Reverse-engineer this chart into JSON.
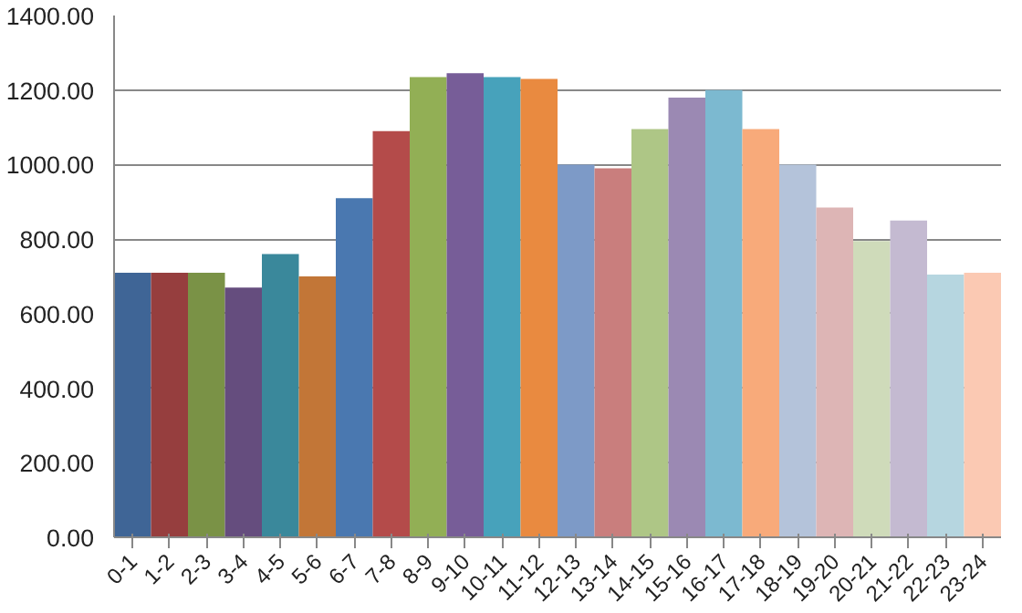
{
  "chart_data": {
    "type": "bar",
    "categories": [
      "0-1",
      "1-2",
      "2-3",
      "3-4",
      "4-5",
      "5-6",
      "6-7",
      "7-8",
      "8-9",
      "9-10",
      "10-11",
      "11-12",
      "12-13",
      "13-14",
      "14-15",
      "15-16",
      "16-17",
      "17-18",
      "18-19",
      "19-20",
      "20-21",
      "21-22",
      "22-23",
      "23-24"
    ],
    "values": [
      710,
      710,
      710,
      670,
      760,
      700,
      910,
      1090,
      1235,
      1245,
      1235,
      1230,
      1000,
      990,
      1095,
      1180,
      1200,
      1095,
      1000,
      885,
      795,
      850,
      705,
      710
    ],
    "colors": [
      "#3f6596",
      "#963e3e",
      "#7a9246",
      "#654d7e",
      "#3a889b",
      "#c27637",
      "#4a78b0",
      "#b44b4a",
      "#92af55",
      "#775d98",
      "#47a2bb",
      "#e98a40",
      "#7d9ac7",
      "#c97e7d",
      "#aec686",
      "#9b89b3",
      "#7cb9d0",
      "#f8aa7a",
      "#b4c3da",
      "#ddb5b5",
      "#cfdbba",
      "#c4bad1",
      "#b6d6e0",
      "#fbc9b3"
    ],
    "ylim": [
      0,
      1400
    ],
    "yticks": [
      {
        "value": 0,
        "label": "0.00"
      },
      {
        "value": 200,
        "label": "200.00"
      },
      {
        "value": 400,
        "label": "400.00"
      },
      {
        "value": 600,
        "label": "600.00"
      },
      {
        "value": 800,
        "label": "800.00"
      },
      {
        "value": 1000,
        "label": "1000.00"
      },
      {
        "value": 1200,
        "label": "1200.00"
      },
      {
        "value": 1400,
        "label": "1400.00"
      }
    ],
    "grid": "y"
  }
}
